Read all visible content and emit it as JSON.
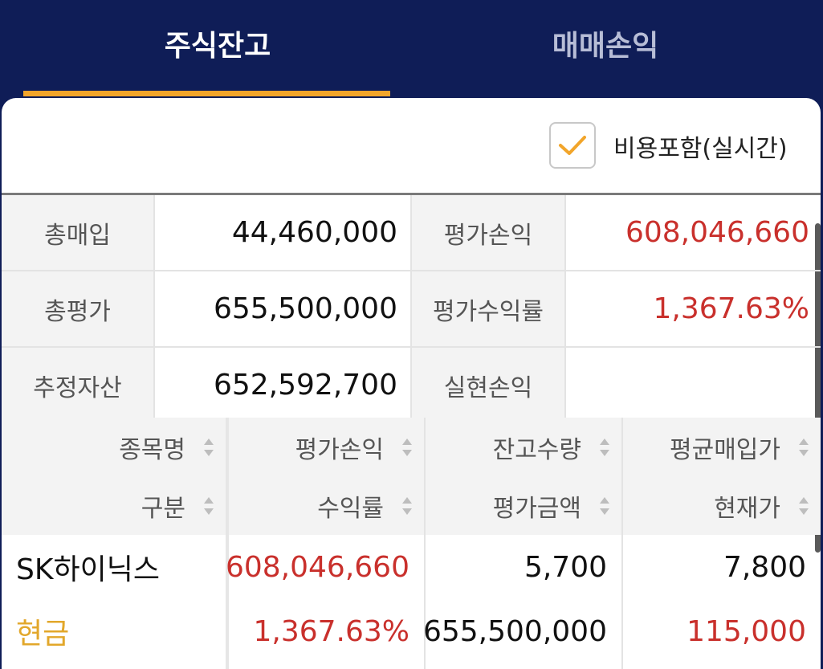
{
  "tabs": [
    {
      "label": "주식잔고",
      "active": true
    },
    {
      "label": "매매손익",
      "active": false
    }
  ],
  "options": {
    "include_cost_label": "비용포함(실시간)",
    "include_cost_checked": true
  },
  "summary": [
    {
      "label1": "총매입",
      "value1": "44,460,000",
      "label2": "평가손익",
      "value2": "608,046,660"
    },
    {
      "label1": "총평가",
      "value1": "655,500,000",
      "label2": "평가수익률",
      "value2": "1,367.63%"
    },
    {
      "label1": "추정자산",
      "value1": "652,592,700",
      "label2": "실현손익",
      "value2": ""
    }
  ],
  "table": {
    "headers": [
      {
        "top": "종목명",
        "bottom": "구분"
      },
      {
        "top": "평가손익",
        "bottom": "수익률"
      },
      {
        "top": "잔고수량",
        "bottom": "평가금액"
      },
      {
        "top": "평균매입가",
        "bottom": "현재가"
      }
    ],
    "rows": [
      {
        "name": "SK하이닉스",
        "type": "현금",
        "eval_pl": "608,046,660",
        "return_rate": "1,367.63%",
        "quantity": "5,700",
        "eval_amount": "655,500,000",
        "avg_price": "7,800",
        "current_price": "115,000"
      }
    ]
  },
  "colors": {
    "header_bg": "#0f1d57",
    "accent": "#f2a52a",
    "profit": "#c9302c",
    "cash": "#e2a72a"
  }
}
